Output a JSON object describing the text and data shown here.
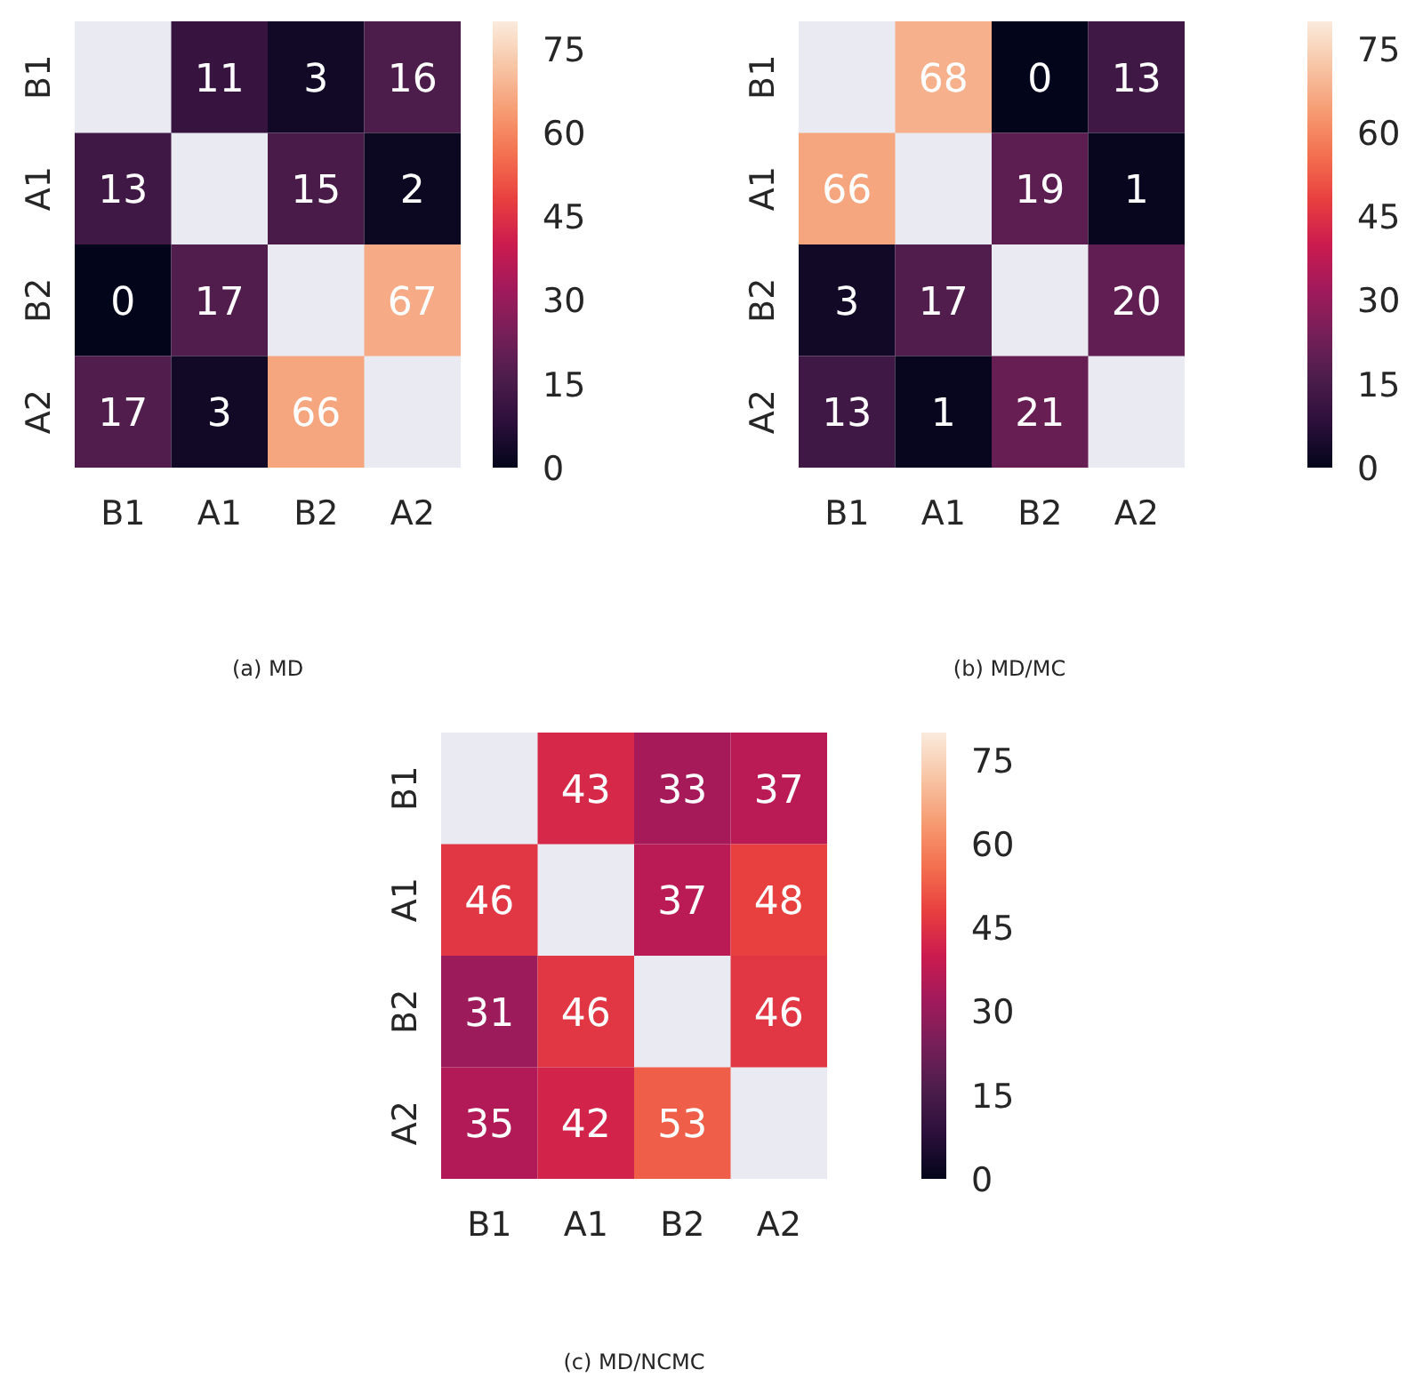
{
  "chart_data": [
    {
      "type": "heatmap",
      "title": "(a) MD",
      "categories": [
        "B1",
        "A1",
        "B2",
        "A2"
      ],
      "y_categories": [
        "B1",
        "A1",
        "B2",
        "A2"
      ],
      "cells": [
        [
          null,
          11,
          3,
          16
        ],
        [
          13,
          null,
          15,
          2
        ],
        [
          0,
          17,
          null,
          67
        ],
        [
          17,
          3,
          66,
          null
        ]
      ],
      "clim": [
        0,
        80
      ],
      "cticks": [
        0,
        15,
        30,
        45,
        60,
        75
      ],
      "data_labels": true
    },
    {
      "type": "heatmap",
      "title": "(b) MD/MC",
      "categories": [
        "B1",
        "A1",
        "B2",
        "A2"
      ],
      "y_categories": [
        "B1",
        "A1",
        "B2",
        "A2"
      ],
      "cells": [
        [
          null,
          68,
          0,
          13
        ],
        [
          66,
          null,
          19,
          1
        ],
        [
          3,
          17,
          null,
          20
        ],
        [
          13,
          1,
          21,
          null
        ]
      ],
      "clim": [
        0,
        80
      ],
      "cticks": [
        0,
        15,
        30,
        45,
        60,
        75
      ],
      "data_labels": true
    },
    {
      "type": "heatmap",
      "title": "(c) MD/NCMC",
      "categories": [
        "B1",
        "A1",
        "B2",
        "A2"
      ],
      "y_categories": [
        "B1",
        "A1",
        "B2",
        "A2"
      ],
      "cells": [
        [
          null,
          43,
          33,
          37
        ],
        [
          46,
          null,
          37,
          48
        ],
        [
          31,
          46,
          null,
          46
        ],
        [
          35,
          42,
          53,
          null
        ]
      ],
      "clim": [
        0,
        80
      ],
      "cticks": [
        0,
        15,
        30,
        45,
        60,
        75
      ],
      "data_labels": true
    }
  ]
}
